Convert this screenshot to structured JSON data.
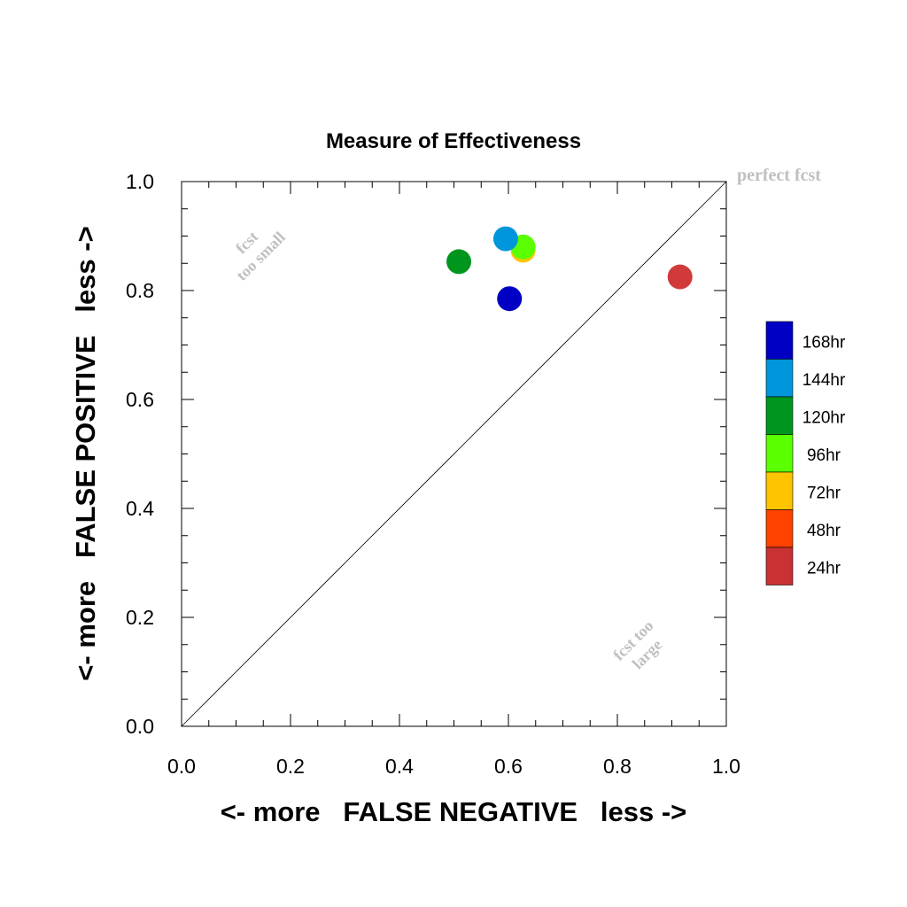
{
  "chart_data": {
    "type": "scatter",
    "title": "Measure of Effectiveness",
    "xlabel": "<- more   FALSE NEGATIVE   less ->",
    "ylabel": "<- more   FALSE POSITIVE   less ->",
    "xlim": [
      0.0,
      1.0
    ],
    "ylim": [
      0.0,
      1.0
    ],
    "x_ticks": [
      "0.0",
      "0.2",
      "0.4",
      "0.6",
      "0.8",
      "1.0"
    ],
    "y_ticks": [
      "0.0",
      "0.2",
      "0.4",
      "0.6",
      "0.8",
      "1.0"
    ],
    "grid": false,
    "diagonal_line": true,
    "annotations": {
      "perfect": "perfect fcst",
      "small_1": "fcst",
      "small_2": "too small",
      "large_1": "fcst too",
      "large_2": "large"
    },
    "annotation_color": "#c0c0c0",
    "legend_position": "right",
    "legend": [
      {
        "label": "168hr",
        "color": "#0000c4"
      },
      {
        "label": "144hr",
        "color": "#0096db"
      },
      {
        "label": "120hr",
        "color": "#00961e"
      },
      {
        "label": "96hr",
        "color": "#5aff00"
      },
      {
        "label": "72hr",
        "color": "#ffc400"
      },
      {
        "label": "48hr",
        "color": "#ff4200"
      },
      {
        "label": "24hr",
        "color": "#c83232"
      }
    ],
    "series": [
      {
        "name": "24hr",
        "color": "#d03a3a",
        "x": 0.915,
        "y": 0.825
      },
      {
        "name": "72hr",
        "color": "#ffc400",
        "x": 0.627,
        "y": 0.874
      },
      {
        "name": "96hr",
        "color": "#5aff00",
        "x": 0.627,
        "y": 0.88
      },
      {
        "name": "120hr",
        "color": "#00961e",
        "x": 0.509,
        "y": 0.853
      },
      {
        "name": "144hr",
        "color": "#0096db",
        "x": 0.595,
        "y": 0.895
      },
      {
        "name": "168hr",
        "color": "#0000c4",
        "x": 0.602,
        "y": 0.785
      }
    ]
  }
}
